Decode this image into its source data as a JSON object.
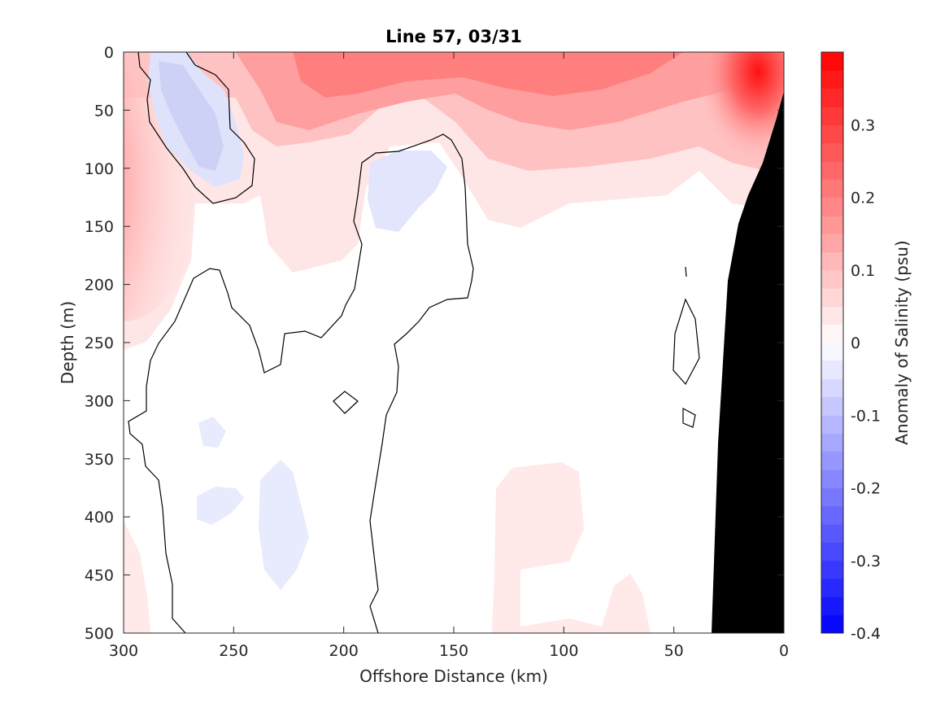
{
  "chart_data": {
    "type": "heatmap",
    "title": "Line 57, 03/31",
    "xlabel": "Offshore Distance (km)",
    "ylabel": "Depth (m)",
    "xlim": [
      300,
      0
    ],
    "ylim": [
      0,
      500
    ],
    "x_ticks": [
      300,
      250,
      200,
      150,
      100,
      50,
      0
    ],
    "y_ticks": [
      0,
      50,
      100,
      150,
      200,
      250,
      300,
      350,
      400,
      450,
      500
    ],
    "colorbar": {
      "label": "Anomaly of Salinity (psu)",
      "range": [
        -0.4,
        0.4
      ],
      "levels": 32,
      "tick_values": [
        -0.4,
        -0.3,
        -0.2,
        -0.1,
        0,
        0.1,
        0.2,
        0.3
      ],
      "tick_labels": [
        "-0.4",
        "-0.3",
        "-0.2",
        "-0.1",
        "0",
        "0.1",
        "0.2",
        "0.3"
      ],
      "colormap": "blue-white-red"
    },
    "field_samples": [
      {
        "x": 300,
        "depth": 0,
        "value": 0.12
      },
      {
        "x": 300,
        "depth": 100,
        "value": 0.18
      },
      {
        "x": 300,
        "depth": 200,
        "value": 0.08
      },
      {
        "x": 265,
        "depth": 50,
        "value": -0.03
      },
      {
        "x": 265,
        "depth": 100,
        "value": -0.04
      },
      {
        "x": 210,
        "depth": 50,
        "value": 0.17
      },
      {
        "x": 200,
        "depth": 150,
        "value": 0.04
      },
      {
        "x": 145,
        "depth": 15,
        "value": 0.2
      },
      {
        "x": 175,
        "depth": 110,
        "value": -0.04
      },
      {
        "x": 100,
        "depth": 25,
        "value": 0.19
      },
      {
        "x": 60,
        "depth": 40,
        "value": 0.12
      },
      {
        "x": 12,
        "depth": 10,
        "value": 0.35
      },
      {
        "x": 30,
        "depth": 90,
        "value": 0.15
      },
      {
        "x": 190,
        "depth": 420,
        "value": -0.02
      },
      {
        "x": 100,
        "depth": 430,
        "value": 0.01
      },
      {
        "x": 150,
        "depth": 350,
        "value": 0.0
      }
    ],
    "zero_contours_present": true,
    "bathymetry_mask_color": "#000000"
  },
  "colors": {
    "positive_max": "#ff0000",
    "negative_max": "#0000ff",
    "zero": "#ffffff",
    "mask": "#000000"
  }
}
